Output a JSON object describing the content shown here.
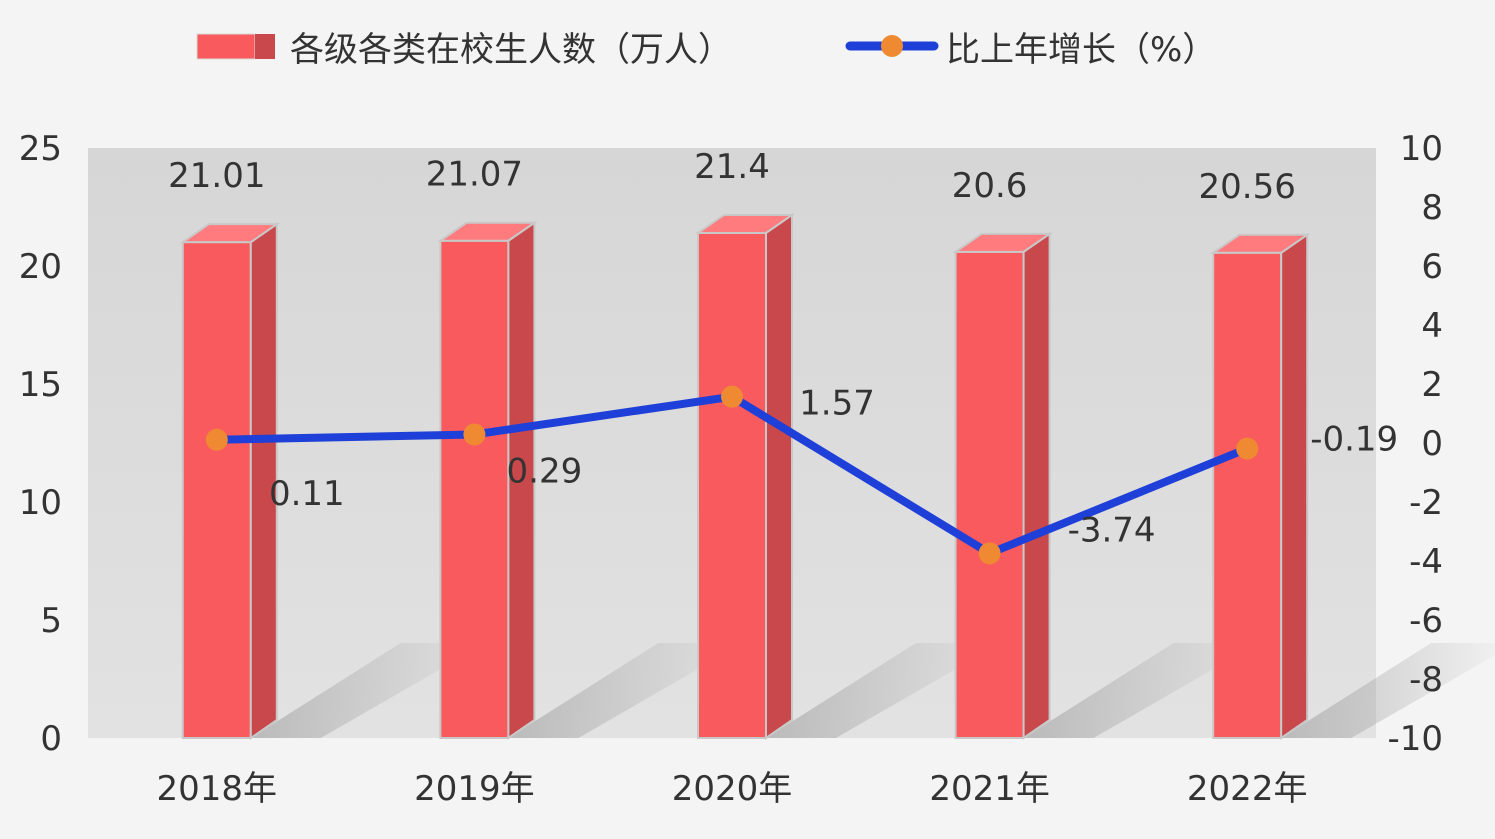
{
  "chart_data": {
    "type": "bar",
    "categories": [
      "2018年",
      "2019年",
      "2020年",
      "2021年",
      "2022年"
    ],
    "series": [
      {
        "name": "各级各类在校生人数（万人）",
        "type": "bar",
        "axis": "left",
        "values": [
          21.01,
          21.07,
          21.4,
          20.6,
          20.56
        ],
        "data_labels": [
          "21.01",
          "21.07",
          "21.4",
          "20.6",
          "20.56"
        ],
        "color": "#f95a5d"
      },
      {
        "name": "比上年增长（%）",
        "type": "line",
        "axis": "right",
        "values": [
          0.11,
          0.29,
          1.57,
          -3.74,
          -0.19
        ],
        "data_labels": [
          "0.11",
          "0.29",
          "1.57",
          "-3.74",
          "-0.19"
        ],
        "color": "#1f3fd9",
        "marker_color": "#ef8a32"
      }
    ],
    "y_left": {
      "ylim": [
        0,
        25
      ],
      "ticks": [
        "0",
        "5",
        "10",
        "15",
        "20",
        "25"
      ]
    },
    "y_right": {
      "ylim": [
        -10,
        10
      ],
      "ticks": [
        "-10",
        "-8",
        "-6",
        "-4",
        "-2",
        "0",
        "2",
        "4",
        "6",
        "8",
        "10"
      ]
    },
    "legend_position": "top-center",
    "grid": false,
    "plot_background": "#d9d9d9"
  }
}
